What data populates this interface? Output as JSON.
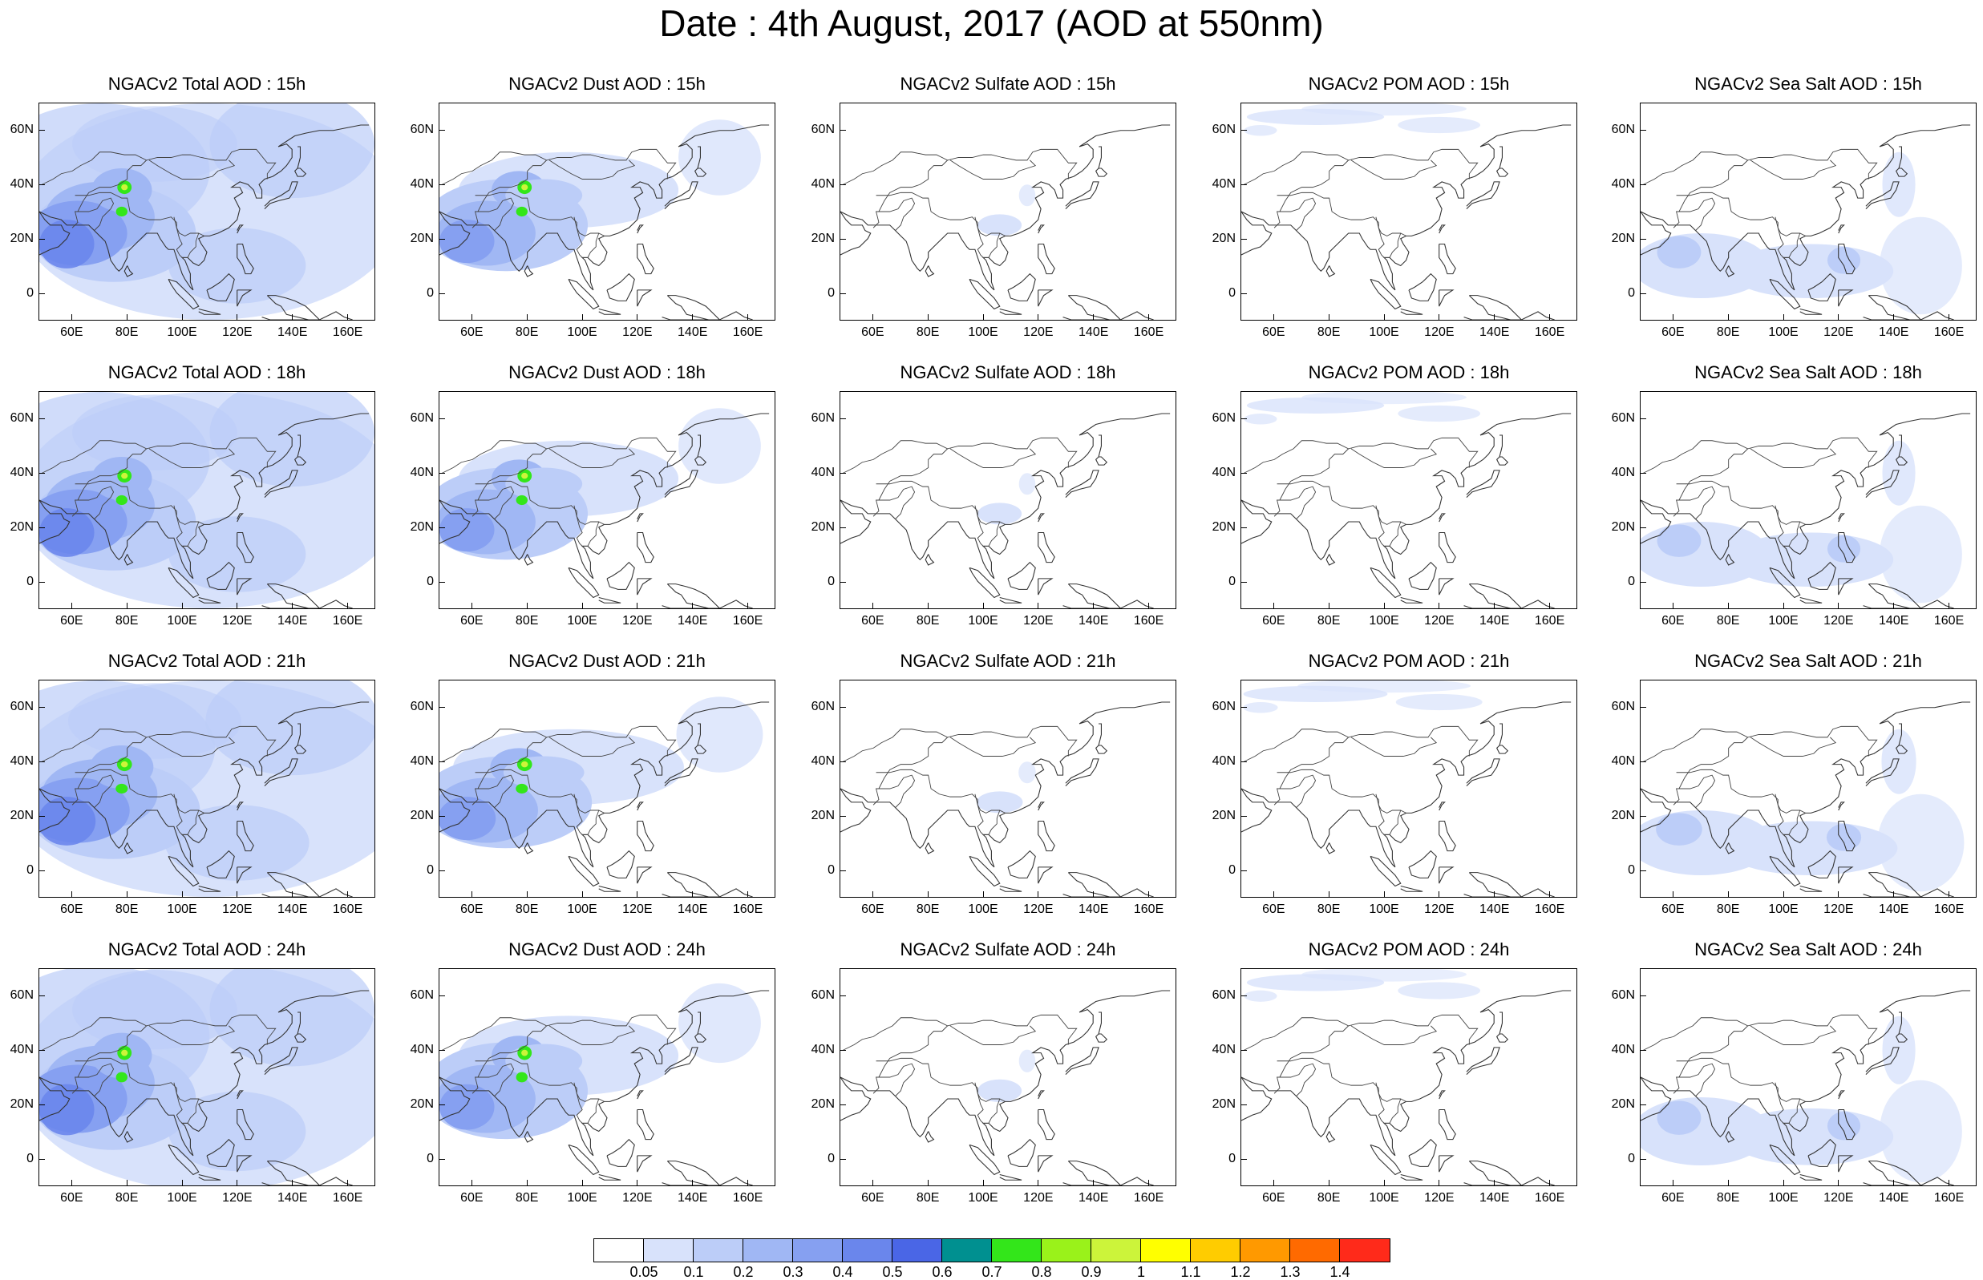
{
  "title": "Date : 4th August, 2017 (AOD at 550nm)",
  "rows": [
    {
      "time": "15h",
      "panels": [
        {
          "title": "NGACv2 Total AOD : 15h",
          "type": "total"
        },
        {
          "title": "NGACv2 Dust AOD : 15h",
          "type": "dust"
        },
        {
          "title": "NGACv2 Sulfate AOD : 15h",
          "type": "sulfate"
        },
        {
          "title": "NGACv2 POM AOD : 15h",
          "type": "pom"
        },
        {
          "title": "NGACv2 Sea Salt AOD : 15h",
          "type": "seasalt"
        }
      ]
    },
    {
      "time": "18h",
      "panels": [
        {
          "title": "NGACv2 Total AOD : 18h",
          "type": "total"
        },
        {
          "title": "NGACv2 Dust AOD : 18h",
          "type": "dust"
        },
        {
          "title": "NGACv2 Sulfate AOD : 18h",
          "type": "sulfate"
        },
        {
          "title": "NGACv2 POM AOD : 18h",
          "type": "pom"
        },
        {
          "title": "NGACv2 Sea Salt AOD : 18h",
          "type": "seasalt"
        }
      ]
    },
    {
      "time": "21h",
      "panels": [
        {
          "title": "NGACv2 Total AOD : 21h",
          "type": "total"
        },
        {
          "title": "NGACv2 Dust AOD : 21h",
          "type": "dust"
        },
        {
          "title": "NGACv2 Sulfate AOD : 21h",
          "type": "sulfate"
        },
        {
          "title": "NGACv2 POM AOD : 21h",
          "type": "pom"
        },
        {
          "title": "NGACv2 Sea Salt AOD : 21h",
          "type": "seasalt"
        }
      ]
    },
    {
      "time": "24h",
      "panels": [
        {
          "title": "NGACv2 Total AOD : 24h",
          "type": "total"
        },
        {
          "title": "NGACv2 Dust AOD : 24h",
          "type": "dust"
        },
        {
          "title": "NGACv2 Sulfate AOD : 24h",
          "type": "sulfate"
        },
        {
          "title": "NGACv2 POM AOD : 24h",
          "type": "pom"
        },
        {
          "title": "NGACv2 Sea Salt  AOD : 24h",
          "type": "seasalt"
        }
      ]
    }
  ],
  "x_ticks": [
    "60E",
    "80E",
    "100E",
    "120E",
    "140E",
    "160E"
  ],
  "x_tick_values": [
    60,
    80,
    100,
    120,
    140,
    160
  ],
  "y_ticks": [
    "60N",
    "40N",
    "20N",
    "0"
  ],
  "y_tick_values": [
    60,
    40,
    20,
    0
  ],
  "lon_range": [
    48,
    170
  ],
  "lat_range": [
    -10,
    70
  ],
  "colorbar": {
    "labels": [
      "0.05",
      "0.1",
      "0.2",
      "0.3",
      "0.4",
      "0.5",
      "0.6",
      "0.7",
      "0.8",
      "0.9",
      "1",
      "1.1",
      "1.2",
      "1.3",
      "1.4"
    ],
    "colors": [
      "#ffffff",
      "#d8e2fb",
      "#bccdf8",
      "#a0b7f4",
      "#86a0f1",
      "#6a86ec",
      "#4a66e6",
      "#009090",
      "#33e61a",
      "#9af21a",
      "#ccf43a",
      "#ffff00",
      "#ffcc00",
      "#ff9900",
      "#ff6a00",
      "#ff2a1a"
    ]
  }
}
